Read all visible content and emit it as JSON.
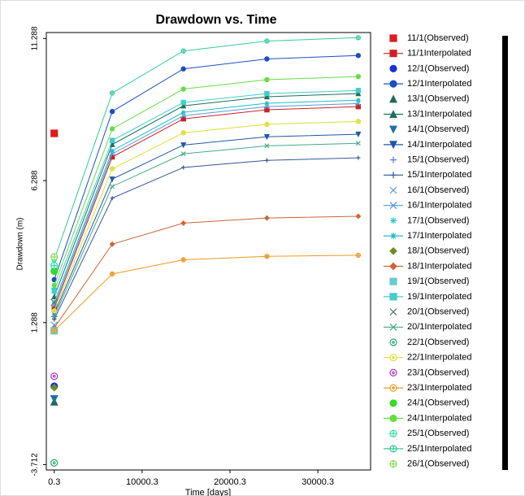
{
  "chart_data": {
    "type": "line",
    "title": "Drawdown vs. Time",
    "xlabel": "Time [days]",
    "ylabel": "Drawdown (m)",
    "x": [
      0.3,
      6600,
      14700,
      24200,
      34600
    ],
    "xlim": [
      -900,
      36000
    ],
    "xticks": [
      0.3,
      10000.3,
      20000.3,
      30000.3
    ],
    "ylim": [
      -3.9,
      11.5
    ],
    "yticks": [
      -3.712,
      1.288,
      6.288,
      11.288
    ],
    "grid": false,
    "legend": "right",
    "series": [
      {
        "name": "11/1(Observed)",
        "color": "#dd1c1c",
        "marker": "square",
        "line": false,
        "values": [
          7.95,
          null,
          null,
          null,
          null
        ]
      },
      {
        "name": "11/1Interpolated",
        "color": "#cc2222",
        "marker": "square",
        "line": true,
        "values": [
          1.8,
          7.12,
          8.46,
          8.78,
          8.89
        ]
      },
      {
        "name": "12/1(Observed)",
        "color": "#1530e0",
        "marker": "circle",
        "line": false,
        "values": [
          -0.95,
          null,
          null,
          null,
          null
        ]
      },
      {
        "name": "12/1Interpolated",
        "color": "#1a4fc4",
        "marker": "circle",
        "line": true,
        "values": [
          2.8,
          8.72,
          10.22,
          10.57,
          10.69
        ]
      },
      {
        "name": "13/1(Observed)",
        "color": "#1e6b5a",
        "marker": "triangle",
        "line": false,
        "values": [
          -1.5,
          null,
          null,
          null,
          null
        ]
      },
      {
        "name": "13/1Interpolated",
        "color": "#1f6f5f",
        "marker": "triangle",
        "line": true,
        "values": [
          2.2,
          7.56,
          8.92,
          9.24,
          9.35
        ]
      },
      {
        "name": "14/1(Observed)",
        "color": "#1f6fa8",
        "marker": "triangle-down",
        "line": false,
        "values": [
          -1.4,
          null,
          null,
          null,
          null
        ]
      },
      {
        "name": "14/1Interpolated",
        "color": "#2255aa",
        "marker": "triangle-down",
        "line": true,
        "values": [
          1.6,
          6.34,
          7.54,
          7.83,
          7.92
        ]
      },
      {
        "name": "15/1(Observed)",
        "color": "#5577dd",
        "marker": "plus",
        "line": false,
        "values": [
          1.5,
          null,
          null,
          null,
          null
        ]
      },
      {
        "name": "15/1Interpolated",
        "color": "#335599",
        "marker": "plus",
        "line": true,
        "values": [
          1.4,
          5.67,
          6.75,
          7.0,
          7.09
        ]
      },
      {
        "name": "16/1(Observed)",
        "color": "#5599dd",
        "marker": "x",
        "line": false,
        "values": [
          1.2,
          null,
          null,
          null,
          null
        ]
      },
      {
        "name": "16/1Interpolated",
        "color": "#5599dd",
        "marker": "x",
        "line": true,
        "values": [
          1.9,
          7.23,
          8.57,
          8.89,
          9.0
        ]
      },
      {
        "name": "17/1(Observed)",
        "color": "#33c8d8",
        "marker": "asterisk",
        "line": false,
        "values": [
          2.5,
          null,
          null,
          null,
          null
        ]
      },
      {
        "name": "17/1Interpolated",
        "color": "#22bbcc",
        "marker": "asterisk",
        "line": true,
        "values": [
          2.0,
          7.34,
          8.69,
          9.01,
          9.12
        ]
      },
      {
        "name": "18/1(Observed)",
        "color": "#6b8e23",
        "marker": "diamond",
        "line": false,
        "values": [
          -1.0,
          null,
          null,
          null,
          null
        ]
      },
      {
        "name": "18/1Interpolated",
        "color": "#cc6633",
        "marker": "diamond",
        "line": true,
        "values": [
          1.1,
          4.05,
          4.79,
          4.97,
          5.03
        ]
      },
      {
        "name": "19/1(Observed)",
        "color": "#66cccc",
        "marker": "square",
        "line": false,
        "values": [
          1.0,
          null,
          null,
          null,
          null
        ]
      },
      {
        "name": "19/1Interpolated",
        "color": "#44cccc",
        "marker": "square",
        "line": true,
        "values": [
          2.4,
          7.7,
          9.04,
          9.35,
          9.46
        ]
      },
      {
        "name": "20/1(Observed)",
        "color": "#557766",
        "marker": "x",
        "line": false,
        "values": [
          2.0,
          null,
          null,
          null,
          null
        ]
      },
      {
        "name": "20/1Interpolated",
        "color": "#44aa88",
        "marker": "x",
        "line": true,
        "values": [
          1.5,
          6.08,
          7.23,
          7.51,
          7.6
        ]
      },
      {
        "name": "22/1(Observed)",
        "color": "#22aa66",
        "marker": "circle-dot",
        "line": false,
        "values": [
          -3.65,
          null,
          null,
          null,
          null
        ]
      },
      {
        "name": "22/1Interpolated",
        "color": "#dddd33",
        "marker": "circle-dot",
        "line": true,
        "values": [
          1.7,
          6.7,
          7.97,
          8.27,
          8.37
        ]
      },
      {
        "name": "23/1(Observed)",
        "color": "#aa33cc",
        "marker": "circle-dot",
        "line": false,
        "values": [
          -0.6,
          null,
          null,
          null,
          null
        ]
      },
      {
        "name": "23/1Interpolated",
        "color": "#ee9922",
        "marker": "circle-dot",
        "line": true,
        "values": [
          1.0,
          3.0,
          3.5,
          3.62,
          3.66
        ]
      },
      {
        "name": "24/1(Observed)",
        "color": "#33dd22",
        "marker": "circle",
        "line": false,
        "values": [
          3.1,
          null,
          null,
          null,
          null
        ]
      },
      {
        "name": "24/1Interpolated",
        "color": "#66dd44",
        "marker": "circle",
        "line": true,
        "values": [
          2.6,
          8.11,
          9.51,
          9.84,
          9.95
        ]
      },
      {
        "name": "25/1(Observed)",
        "color": "#22ddaa",
        "marker": "circle-plus",
        "line": false,
        "values": [
          3.3,
          null,
          null,
          null,
          null
        ]
      },
      {
        "name": "25/1Interpolated",
        "color": "#33cc99",
        "marker": "circle-plus",
        "line": true,
        "values": [
          3.5,
          9.37,
          10.85,
          11.2,
          11.32
        ]
      },
      {
        "name": "26/1(Observed)",
        "color": "#88dd55",
        "marker": "circle-plus",
        "line": false,
        "values": [
          3.6,
          null,
          null,
          null,
          null
        ]
      }
    ]
  }
}
